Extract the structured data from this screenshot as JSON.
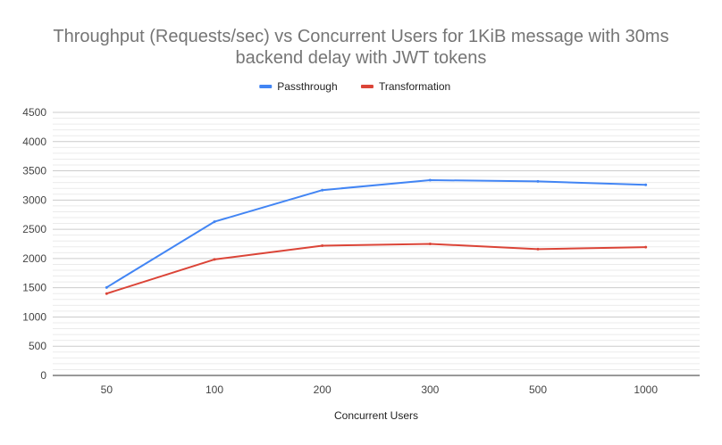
{
  "chart_data": {
    "type": "line",
    "title_lines": [
      "Throughput (Requests/sec) vs Concurrent Users for 1KiB message with 30ms",
      "backend delay with JWT tokens"
    ],
    "xlabel": "Concurrent Users",
    "ylabel": "",
    "categories": [
      "50",
      "100",
      "200",
      "300",
      "500",
      "1000"
    ],
    "ylim": [
      0,
      4500
    ],
    "yticks": [
      "0",
      "500",
      "1000",
      "1500",
      "2000",
      "2500",
      "3000",
      "3500",
      "4000",
      "4500"
    ],
    "minor_gridlines": true,
    "legend_position": "top",
    "series": [
      {
        "name": "Passthrough",
        "color": "#4285f4",
        "values": [
          1505,
          2630,
          3170,
          3340,
          3320,
          3260
        ]
      },
      {
        "name": "Transformation",
        "color": "#db4437",
        "values": [
          1400,
          1985,
          2220,
          2250,
          2160,
          2195
        ]
      }
    ]
  }
}
